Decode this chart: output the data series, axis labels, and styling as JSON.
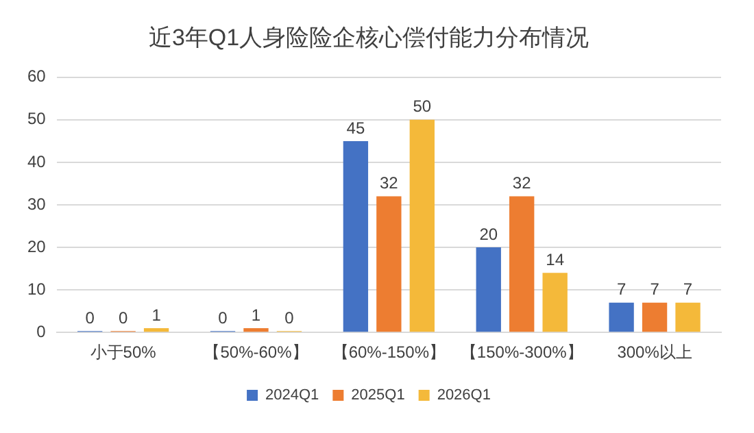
{
  "chart_data": {
    "type": "bar",
    "title": "近3年Q1人身险险企核心偿付能力分布情况",
    "categories": [
      "小于50%",
      "【50%-60%】",
      "【60%-150%】",
      "【150%-300%】",
      "300%以上"
    ],
    "series": [
      {
        "name": "2024Q1",
        "color": "#4472c4",
        "values": [
          0,
          0,
          45,
          20,
          7
        ]
      },
      {
        "name": "2025Q1",
        "color": "#ed7d31",
        "values": [
          0,
          1,
          32,
          32,
          7
        ]
      },
      {
        "name": "2026Q1",
        "color": "#f4b93a",
        "values": [
          1,
          0,
          50,
          14,
          7
        ]
      }
    ],
    "ylim": [
      0,
      60
    ],
    "yticks": [
      0,
      10,
      20,
      30,
      40,
      50,
      60
    ],
    "grid": "y",
    "legend": "bottom",
    "data_labels": true
  }
}
